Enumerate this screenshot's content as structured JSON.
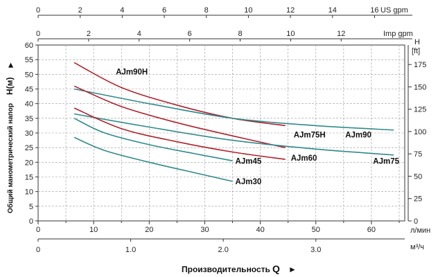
{
  "chart_data": {
    "type": "line",
    "title": "",
    "x_axes": {
      "us_gpm": {
        "unit": "US gpm",
        "ticks": [
          "0",
          "2",
          "4",
          "6",
          "8",
          "10",
          "12",
          "14",
          "16"
        ]
      },
      "imp_gpm": {
        "unit": "Imp gpm",
        "ticks": [
          "0",
          "2",
          "4",
          "6",
          "8",
          "10",
          "12"
        ]
      },
      "l_min": {
        "unit": "л/мин",
        "ticks": [
          "0",
          "10",
          "20",
          "30",
          "40",
          "50",
          "60"
        ],
        "range": [
          0,
          66
        ]
      },
      "m3_h": {
        "unit": "м³/ч",
        "ticks": [
          "0",
          "1.0",
          "2.0",
          "3.0"
        ]
      }
    },
    "y_axes": {
      "left": {
        "label": "Общий манометрический напор",
        "unit_label": "H(м)",
        "ticks": [
          "0",
          "5",
          "10",
          "15",
          "20",
          "25",
          "30",
          "35",
          "40",
          "45",
          "50",
          "55",
          "60"
        ],
        "range": [
          0,
          60
        ]
      },
      "right": {
        "label": "H",
        "unit": "[ft]",
        "ticks": [
          "0",
          "25",
          "50",
          "75",
          "100",
          "125",
          "150",
          "175"
        ]
      }
    },
    "x_title": "Производительность",
    "x_title_symbol": "Q",
    "arrow_glyph": "►",
    "series": [
      {
        "name": "AJm90H",
        "color": "#b0202a",
        "x": [
          6.5,
          15,
          25,
          35,
          44.5
        ],
        "y": [
          54,
          45.5,
          39.5,
          35,
          32.5
        ]
      },
      {
        "name": "AJm90",
        "color": "#2f8a8c",
        "x": [
          6.5,
          20,
          35,
          50,
          64
        ],
        "y": [
          45,
          40,
          35,
          32.5,
          31
        ]
      },
      {
        "name": "AJm75H",
        "color": "#b0202a",
        "x": [
          6.5,
          15,
          25,
          35,
          44.5
        ],
        "y": [
          46,
          39,
          33.5,
          29,
          25
        ]
      },
      {
        "name": "AJm75",
        "color": "#2f8a8c",
        "x": [
          6.5,
          20,
          35,
          50,
          64
        ],
        "y": [
          36.5,
          32,
          27.5,
          24.5,
          22.5
        ]
      },
      {
        "name": "AJm60",
        "color": "#b0202a",
        "x": [
          6.5,
          15,
          25,
          35,
          44.5
        ],
        "y": [
          38.5,
          31.5,
          27,
          23.5,
          21
        ]
      },
      {
        "name": "AJm45",
        "color": "#2f8a8c",
        "x": [
          6.5,
          12,
          20,
          28,
          35
        ],
        "y": [
          35,
          30,
          26,
          23,
          20.5
        ]
      },
      {
        "name": "AJm30",
        "color": "#2f8a8c",
        "x": [
          6.5,
          12,
          20,
          28,
          35
        ],
        "y": [
          28.5,
          24,
          20,
          16.5,
          13.5
        ]
      }
    ]
  }
}
